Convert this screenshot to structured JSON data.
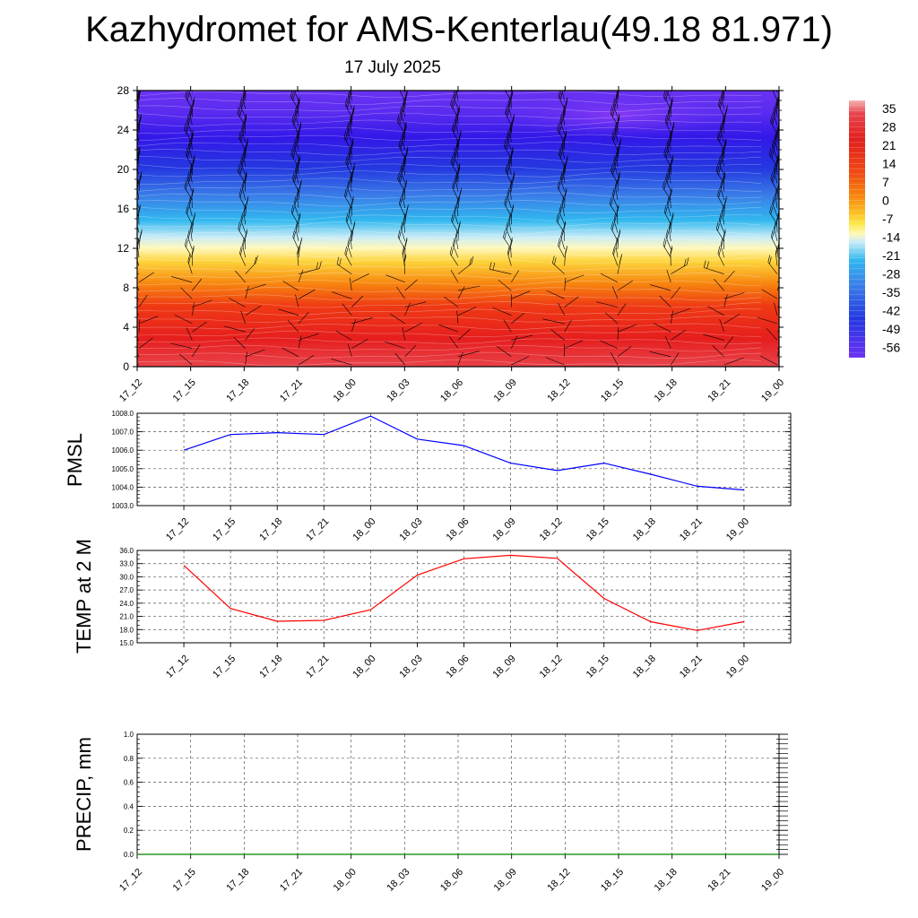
{
  "header": {
    "title": "Kazhydromet for AMS-Kenterlau(49.18 81.971)",
    "date": "17 July 2025"
  },
  "chart_data": [
    {
      "type": "heatmap",
      "yticks": [
        "0",
        "4",
        "8",
        "12",
        "16",
        "20",
        "24",
        "28"
      ],
      "xticks": [
        "17_12",
        "17_15",
        "17_18",
        "17_21",
        "18_00",
        "18_03",
        "18_06",
        "18_09",
        "18_12",
        "18_15",
        "18_18",
        "18_21",
        "19_00"
      ],
      "ylim": [
        0,
        28
      ],
      "colorbar": {
        "labels": [
          "35",
          "28",
          "21",
          "14",
          "7",
          "0",
          "-7",
          "-14",
          "-21",
          "-28",
          "-35",
          "-42",
          "-49",
          "-56"
        ],
        "range": [
          -60,
          38
        ]
      },
      "wind_barbs": true
    },
    {
      "type": "line",
      "ylabel": "PMSL",
      "ylim": [
        1003.0,
        1008.0
      ],
      "yticks": [
        "1003.0",
        "1004.0",
        "1005.0",
        "1006.0",
        "1007.0",
        "1008.0"
      ],
      "x": [
        "17_12",
        "17_15",
        "17_18",
        "17_21",
        "18_00",
        "18_03",
        "18_06",
        "18_09",
        "18_12",
        "18_15",
        "18_18",
        "18_21",
        "19_00"
      ],
      "values": [
        1006.0,
        1006.85,
        1006.95,
        1006.85,
        1007.85,
        1006.6,
        1006.25,
        1005.3,
        1004.9,
        1005.3,
        1004.7,
        1004.05,
        1003.85
      ],
      "color": "#0000ff",
      "grid": true
    },
    {
      "type": "line",
      "ylabel": "TEMP at 2 M",
      "ylim": [
        15.0,
        36.0
      ],
      "yticks": [
        "15.0",
        "18.0",
        "21.0",
        "24.0",
        "27.0",
        "30.0",
        "33.0",
        "36.0"
      ],
      "x": [
        "17_12",
        "17_15",
        "17_18",
        "17_21",
        "18_00",
        "18_03",
        "18_06",
        "18_09",
        "18_12",
        "18_15",
        "18_18",
        "18_21",
        "19_00"
      ],
      "values": [
        32.6,
        22.8,
        19.9,
        20.1,
        22.5,
        30.4,
        34.1,
        34.9,
        34.2,
        25.1,
        19.8,
        17.8,
        19.8
      ],
      "color": "#ff0000",
      "grid": true
    },
    {
      "type": "line",
      "ylabel": "PRECIP, mm",
      "ylim": [
        0.0,
        1.0
      ],
      "yticks": [
        "0.0",
        "0.2",
        "0.4",
        "0.6",
        "0.8",
        "1.0"
      ],
      "xticks": [
        "17_12",
        "17_15",
        "17_18",
        "17_21",
        "18_00",
        "18_03",
        "18_06",
        "18_09",
        "18_12",
        "18_15",
        "18_18",
        "18_21",
        "19_00"
      ],
      "values": [
        0,
        0,
        0,
        0,
        0,
        0,
        0,
        0,
        0,
        0,
        0,
        0,
        0
      ],
      "color": "#008000",
      "grid": true
    }
  ]
}
